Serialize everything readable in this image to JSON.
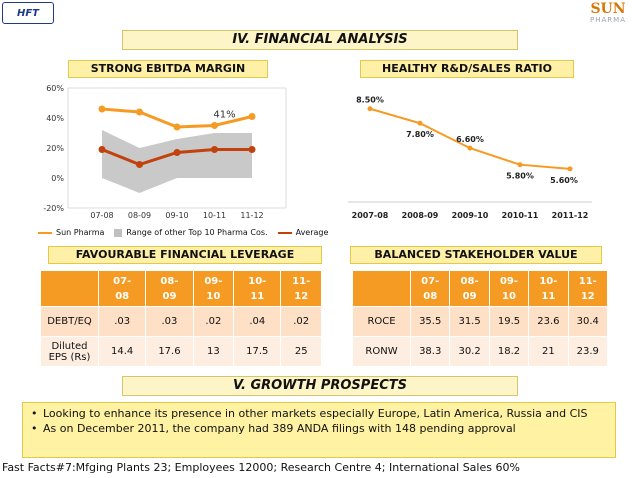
{
  "logos": {
    "left_text": "HFT",
    "right_top": "SUN",
    "right_bottom": "PHARMA"
  },
  "sections": {
    "financial": "IV. FINANCIAL ANALYSIS",
    "growth": "V. GROWTH PROSPECTS"
  },
  "subtitles": {
    "ebitda": "STRONG EBITDA MARGIN",
    "rd": "HEALTHY R&D/SALES RATIO",
    "leverage": "FAVOURABLE FINANCIAL LEVERAGE",
    "stakeholder": "BALANCED STAKEHOLDER VALUE"
  },
  "chart_data": [
    {
      "type": "line",
      "categories": [
        "07-08",
        "08-09",
        "09-10",
        "10-11",
        "11-12"
      ],
      "y_ticks": [
        "60%",
        "40%",
        "20%",
        "0%",
        "-20%"
      ],
      "ylim": [
        -20,
        60
      ],
      "series": [
        {
          "name": "Sun Pharma",
          "values": [
            46,
            44,
            34,
            35,
            41
          ],
          "color": "#f59b23"
        },
        {
          "name": "Range of other Top 10 Pharma Cos.",
          "type": "area",
          "low": [
            0,
            -10,
            0,
            0,
            0
          ],
          "high": [
            32,
            20,
            26,
            30,
            30
          ],
          "color": "#c0c0c0"
        },
        {
          "name": "Average",
          "values": [
            19,
            9,
            17,
            19,
            19
          ],
          "color": "#c2410c"
        }
      ],
      "annotation": "41%",
      "legend": "bottom"
    },
    {
      "type": "line",
      "categories": [
        "2007-08",
        "2008-09",
        "2009-10",
        "2010-11",
        "2011-12"
      ],
      "values": [
        8.5,
        7.8,
        6.6,
        5.8,
        5.6
      ],
      "labels": [
        "8.50%",
        "7.80%",
        "6.60%",
        "5.80%",
        "5.60%"
      ],
      "color": "#f59b23",
      "ylim": [
        4,
        9.5
      ]
    }
  ],
  "leverage_table": {
    "headers": [
      "",
      "07-\n08",
      "08-\n09",
      "09-\n10",
      "10-\n11",
      "11-\n12"
    ],
    "rows": [
      [
        "DEBT/EQ",
        ".03",
        ".03",
        ".02",
        ".04",
        ".02"
      ],
      [
        "Diluted EPS (Rs)",
        "14.4",
        "17.6",
        "13",
        "17.5",
        "25"
      ]
    ]
  },
  "stakeholder_table": {
    "headers": [
      "",
      "07-\n08",
      "08-\n09",
      "09-\n10",
      "10-\n11",
      "11-\n12"
    ],
    "rows": [
      [
        "ROCE",
        "35.5",
        "31.5",
        "19.5",
        "23.6",
        "30.4"
      ],
      [
        "RONW",
        "38.3",
        "30.2",
        "18.2",
        "21",
        "23.9"
      ]
    ]
  },
  "bullets": [
    "Looking to enhance its presence in other markets especially Europe, Latin America, Russia and CIS",
    "As on December 2011, the company had 389 ANDA filings with 148 pending approval"
  ],
  "footer": "Fast Facts#7:Mfging Plants 23; Employees 12000; Research Centre 4; International Sales 60%"
}
